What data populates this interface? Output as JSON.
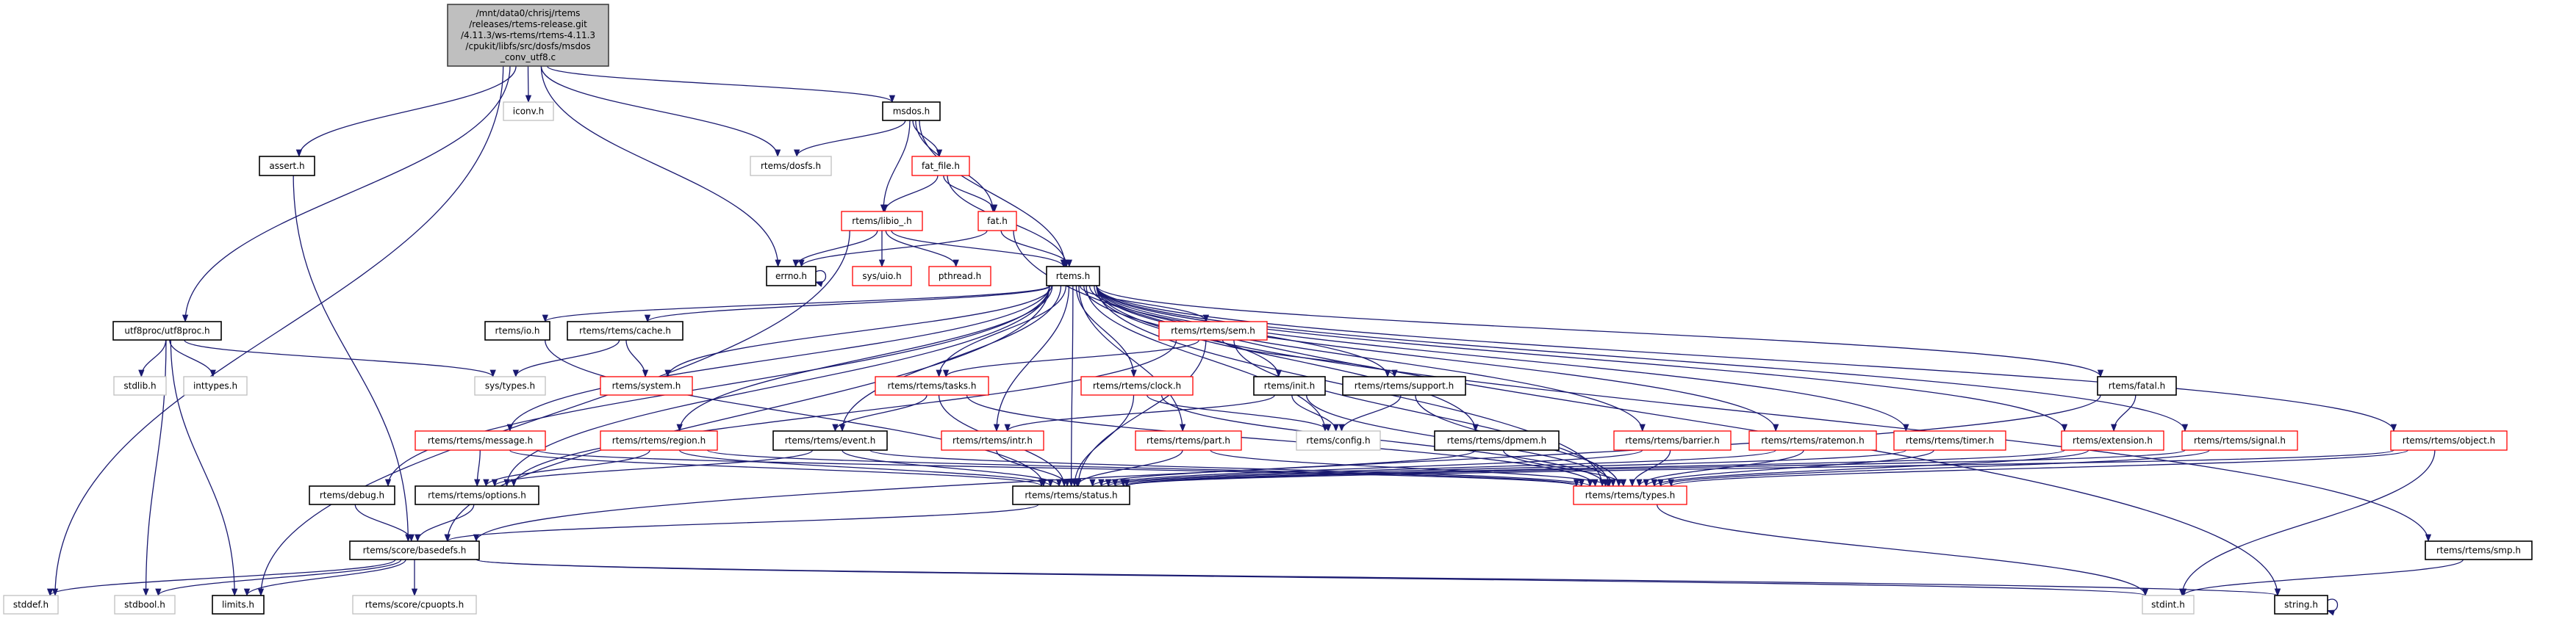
{
  "diagram": {
    "type": "include-dependency-graph",
    "edge_color": "#191970",
    "style_colors": {
      "main_fill": "#bfbfbf",
      "documented": "#000000",
      "undocumented": "#ff0000",
      "external": "#bfbfbf"
    },
    "nodes": [
      {
        "id": "main",
        "style": "main",
        "lines": [
          "/mnt/data0/chrisj/rtems",
          "/releases/rtems-release.git",
          "/4.11.3/ws-rtems/rtems-4.11.3",
          "/cpukit/libfs/src/dosfs/msdos",
          "_conv_utf8.c"
        ]
      },
      {
        "id": "iconv",
        "style": "external",
        "label": "iconv.h"
      },
      {
        "id": "assert",
        "style": "documented",
        "label": "assert.h"
      },
      {
        "id": "msdos",
        "style": "documented",
        "label": "msdos.h"
      },
      {
        "id": "dosfs",
        "style": "external",
        "label": "rtems/dosfs.h"
      },
      {
        "id": "fat_file",
        "style": "undocumented",
        "label": "fat_file.h"
      },
      {
        "id": "libio",
        "style": "undocumented",
        "label": "rtems/libio_.h"
      },
      {
        "id": "fat",
        "style": "undocumented",
        "label": "fat.h"
      },
      {
        "id": "errno",
        "style": "documented",
        "label": "errno.h"
      },
      {
        "id": "uio",
        "style": "undocumented",
        "label": "sys/uio.h"
      },
      {
        "id": "pthread",
        "style": "undocumented",
        "label": "pthread.h"
      },
      {
        "id": "rtems",
        "style": "documented",
        "label": "rtems.h"
      },
      {
        "id": "utf8proc",
        "style": "documented",
        "label": "utf8proc/utf8proc.h"
      },
      {
        "id": "io",
        "style": "documented",
        "label": "rtems/io.h"
      },
      {
        "id": "cache",
        "style": "documented",
        "label": "rtems/rtems/cache.h"
      },
      {
        "id": "sem",
        "style": "undocumented",
        "label": "rtems/rtems/sem.h"
      },
      {
        "id": "stdlib",
        "style": "external",
        "label": "stdlib.h"
      },
      {
        "id": "inttypes",
        "style": "external",
        "label": "inttypes.h"
      },
      {
        "id": "systypes",
        "style": "external",
        "label": "sys/types.h"
      },
      {
        "id": "system",
        "style": "undocumented",
        "label": "rtems/system.h"
      },
      {
        "id": "tasks",
        "style": "undocumented",
        "label": "rtems/rtems/tasks.h"
      },
      {
        "id": "clock",
        "style": "undocumented",
        "label": "rtems/rtems/clock.h"
      },
      {
        "id": "init",
        "style": "documented",
        "label": "rtems/init.h"
      },
      {
        "id": "support",
        "style": "documented",
        "label": "rtems/rtems/support.h"
      },
      {
        "id": "fatal",
        "style": "documented",
        "label": "rtems/fatal.h"
      },
      {
        "id": "message",
        "style": "undocumented",
        "label": "rtems/rtems/message.h"
      },
      {
        "id": "region",
        "style": "undocumented",
        "label": "rtems/rtems/region.h"
      },
      {
        "id": "event",
        "style": "documented",
        "label": "rtems/rtems/event.h"
      },
      {
        "id": "intr",
        "style": "undocumented",
        "label": "rtems/rtems/intr.h"
      },
      {
        "id": "part",
        "style": "undocumented",
        "label": "rtems/rtems/part.h"
      },
      {
        "id": "config",
        "style": "external",
        "label": "rtems/config.h"
      },
      {
        "id": "dpmem",
        "style": "documented",
        "label": "rtems/rtems/dpmem.h"
      },
      {
        "id": "barrier",
        "style": "undocumented",
        "label": "rtems/rtems/barrier.h"
      },
      {
        "id": "ratemon",
        "style": "undocumented",
        "label": "rtems/rtems/ratemon.h"
      },
      {
        "id": "timer",
        "style": "undocumented",
        "label": "rtems/rtems/timer.h"
      },
      {
        "id": "extension",
        "style": "undocumented",
        "label": "rtems/extension.h"
      },
      {
        "id": "signal",
        "style": "undocumented",
        "label": "rtems/rtems/signal.h"
      },
      {
        "id": "object",
        "style": "undocumented",
        "label": "rtems/rtems/object.h"
      },
      {
        "id": "debug",
        "style": "documented",
        "label": "rtems/debug.h"
      },
      {
        "id": "options",
        "style": "documented",
        "label": "rtems/rtems/options.h"
      },
      {
        "id": "status",
        "style": "documented",
        "label": "rtems/rtems/status.h"
      },
      {
        "id": "types",
        "style": "undocumented",
        "label": "rtems/rtems/types.h"
      },
      {
        "id": "basedefs",
        "style": "documented",
        "label": "rtems/score/basedefs.h"
      },
      {
        "id": "smp",
        "style": "documented",
        "label": "rtems/rtems/smp.h"
      },
      {
        "id": "stddef",
        "style": "external",
        "label": "stddef.h"
      },
      {
        "id": "stdbool",
        "style": "external",
        "label": "stdbool.h"
      },
      {
        "id": "limits",
        "style": "documented",
        "label": "limits.h"
      },
      {
        "id": "cpuopts",
        "style": "external",
        "label": "rtems/score/cpuopts.h"
      },
      {
        "id": "stdint",
        "style": "external",
        "label": "stdint.h"
      },
      {
        "id": "string",
        "style": "documented",
        "label": "string.h"
      }
    ],
    "edges": [
      [
        "main",
        "stddef"
      ],
      [
        "main",
        "utf8proc"
      ],
      [
        "main",
        "assert"
      ],
      [
        "main",
        "iconv"
      ],
      [
        "main",
        "errno"
      ],
      [
        "main",
        "dosfs"
      ],
      [
        "main",
        "msdos"
      ],
      [
        "assert",
        "basedefs"
      ],
      [
        "utf8proc",
        "stdlib"
      ],
      [
        "utf8proc",
        "inttypes"
      ],
      [
        "utf8proc",
        "systypes"
      ],
      [
        "utf8proc",
        "stdbool"
      ],
      [
        "utf8proc",
        "limits"
      ],
      [
        "msdos",
        "dosfs"
      ],
      [
        "msdos",
        "fat_file"
      ],
      [
        "msdos",
        "libio"
      ],
      [
        "msdos",
        "fat"
      ],
      [
        "msdos",
        "rtems"
      ],
      [
        "fat_file",
        "libio"
      ],
      [
        "fat_file",
        "fat"
      ],
      [
        "fat_file",
        "rtems"
      ],
      [
        "fat",
        "errno"
      ],
      [
        "fat",
        "rtems"
      ],
      [
        "fat",
        "string"
      ],
      [
        "libio",
        "errno"
      ],
      [
        "libio",
        "uio"
      ],
      [
        "libio",
        "pthread"
      ],
      [
        "libio",
        "rtems"
      ],
      [
        "libio",
        "limits"
      ],
      [
        "errno",
        "errno"
      ],
      [
        "rtems",
        "io"
      ],
      [
        "rtems",
        "cache"
      ],
      [
        "rtems",
        "system"
      ],
      [
        "rtems",
        "message"
      ],
      [
        "rtems",
        "debug"
      ],
      [
        "rtems",
        "options"
      ],
      [
        "rtems",
        "basedefs"
      ],
      [
        "rtems",
        "region"
      ],
      [
        "rtems",
        "event"
      ],
      [
        "rtems",
        "tasks"
      ],
      [
        "rtems",
        "intr"
      ],
      [
        "rtems",
        "status"
      ],
      [
        "rtems",
        "sem"
      ],
      [
        "rtems",
        "clock"
      ],
      [
        "rtems",
        "part"
      ],
      [
        "rtems",
        "init"
      ],
      [
        "rtems",
        "config"
      ],
      [
        "rtems",
        "support"
      ],
      [
        "rtems",
        "dpmem"
      ],
      [
        "rtems",
        "barrier"
      ],
      [
        "rtems",
        "ratemon"
      ],
      [
        "rtems",
        "timer"
      ],
      [
        "rtems",
        "extension"
      ],
      [
        "rtems",
        "fatal"
      ],
      [
        "rtems",
        "signal"
      ],
      [
        "rtems",
        "object"
      ],
      [
        "rtems",
        "smp"
      ],
      [
        "rtems",
        "types"
      ],
      [
        "io",
        "status"
      ],
      [
        "cache",
        "systypes"
      ],
      [
        "cache",
        "system"
      ],
      [
        "sem",
        "tasks"
      ],
      [
        "sem",
        "options"
      ],
      [
        "sem",
        "support"
      ],
      [
        "sem",
        "types"
      ],
      [
        "sem",
        "status"
      ],
      [
        "tasks",
        "event"
      ],
      [
        "tasks",
        "status"
      ],
      [
        "tasks",
        "types"
      ],
      [
        "clock",
        "status"
      ],
      [
        "clock",
        "config"
      ],
      [
        "clock",
        "types"
      ],
      [
        "init",
        "intr"
      ],
      [
        "init",
        "config"
      ],
      [
        "init",
        "types"
      ],
      [
        "support",
        "config"
      ],
      [
        "support",
        "types"
      ],
      [
        "message",
        "options"
      ],
      [
        "message",
        "status"
      ],
      [
        "message",
        "types"
      ],
      [
        "region",
        "options"
      ],
      [
        "region",
        "status"
      ],
      [
        "region",
        "types"
      ],
      [
        "event",
        "options"
      ],
      [
        "event",
        "status"
      ],
      [
        "event",
        "types"
      ],
      [
        "intr",
        "status"
      ],
      [
        "part",
        "status"
      ],
      [
        "part",
        "types"
      ],
      [
        "dpmem",
        "status"
      ],
      [
        "dpmem",
        "types"
      ],
      [
        "barrier",
        "status"
      ],
      [
        "barrier",
        "types"
      ],
      [
        "ratemon",
        "status"
      ],
      [
        "ratemon",
        "types"
      ],
      [
        "timer",
        "status"
      ],
      [
        "timer",
        "types"
      ],
      [
        "extension",
        "status"
      ],
      [
        "extension",
        "types"
      ],
      [
        "signal",
        "status"
      ],
      [
        "signal",
        "types"
      ],
      [
        "object",
        "status"
      ],
      [
        "object",
        "types"
      ],
      [
        "object",
        "stdint"
      ],
      [
        "fatal",
        "extension"
      ],
      [
        "fatal",
        "basedefs"
      ],
      [
        "options",
        "basedefs"
      ],
      [
        "debug",
        "basedefs"
      ],
      [
        "status",
        "basedefs"
      ],
      [
        "types",
        "stdint"
      ],
      [
        "basedefs",
        "stddef"
      ],
      [
        "basedefs",
        "stdbool"
      ],
      [
        "basedefs",
        "limits"
      ],
      [
        "basedefs",
        "cpuopts"
      ],
      [
        "basedefs",
        "stdint"
      ],
      [
        "basedefs",
        "string"
      ],
      [
        "smp",
        "stdint"
      ],
      [
        "string",
        "string"
      ]
    ]
  }
}
